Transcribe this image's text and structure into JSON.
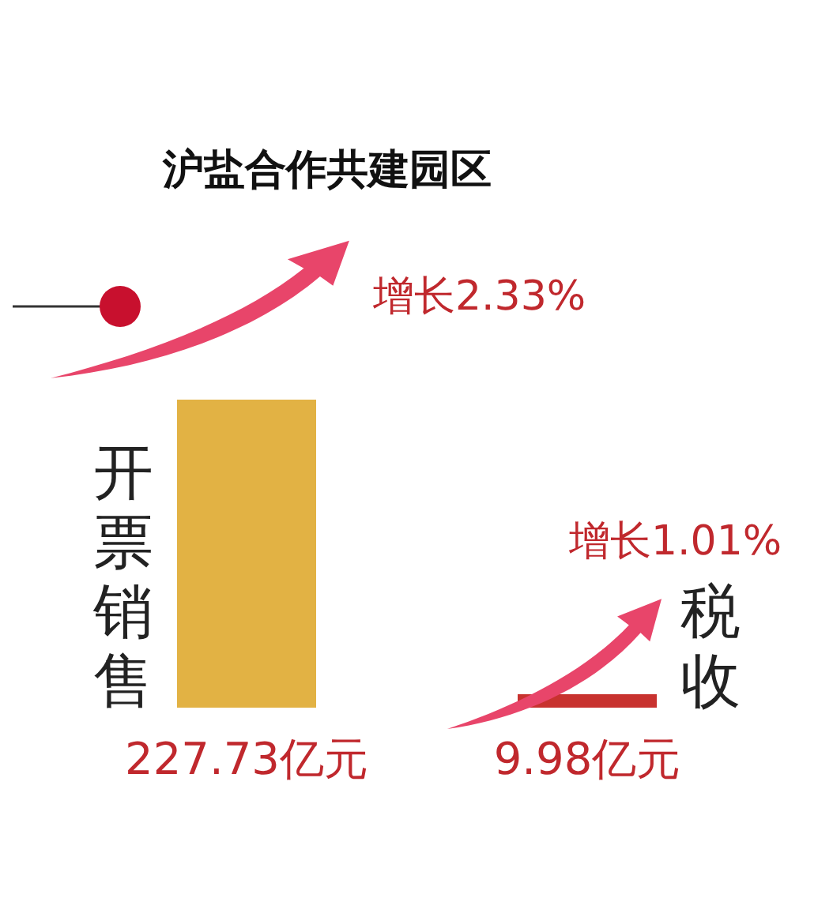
{
  "chart_data": {
    "type": "bar",
    "title": "沪盐合作共建园区",
    "categories": [
      "开票销售",
      "税收"
    ],
    "values": [
      227.73,
      9.98
    ],
    "colors": [
      "#e2b244",
      "#c8322f"
    ],
    "value_labels": [
      "227.73亿元",
      "9.98亿元"
    ],
    "annotations": [
      "增长2.33%",
      "增长1.01%"
    ]
  }
}
